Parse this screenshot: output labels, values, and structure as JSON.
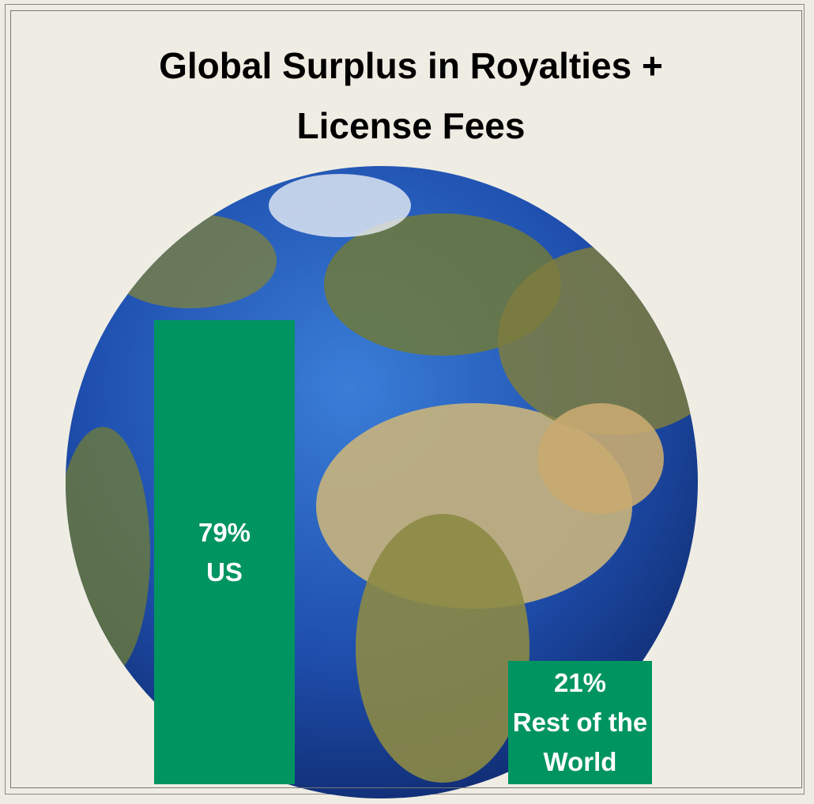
{
  "chart_data": {
    "type": "bar",
    "title": "Global Surplus in Royalties + License Fees",
    "categories": [
      "US",
      "Rest of the World"
    ],
    "values": [
      79,
      21
    ],
    "value_labels": [
      "79%",
      "21%"
    ],
    "color": "#009460"
  }
}
